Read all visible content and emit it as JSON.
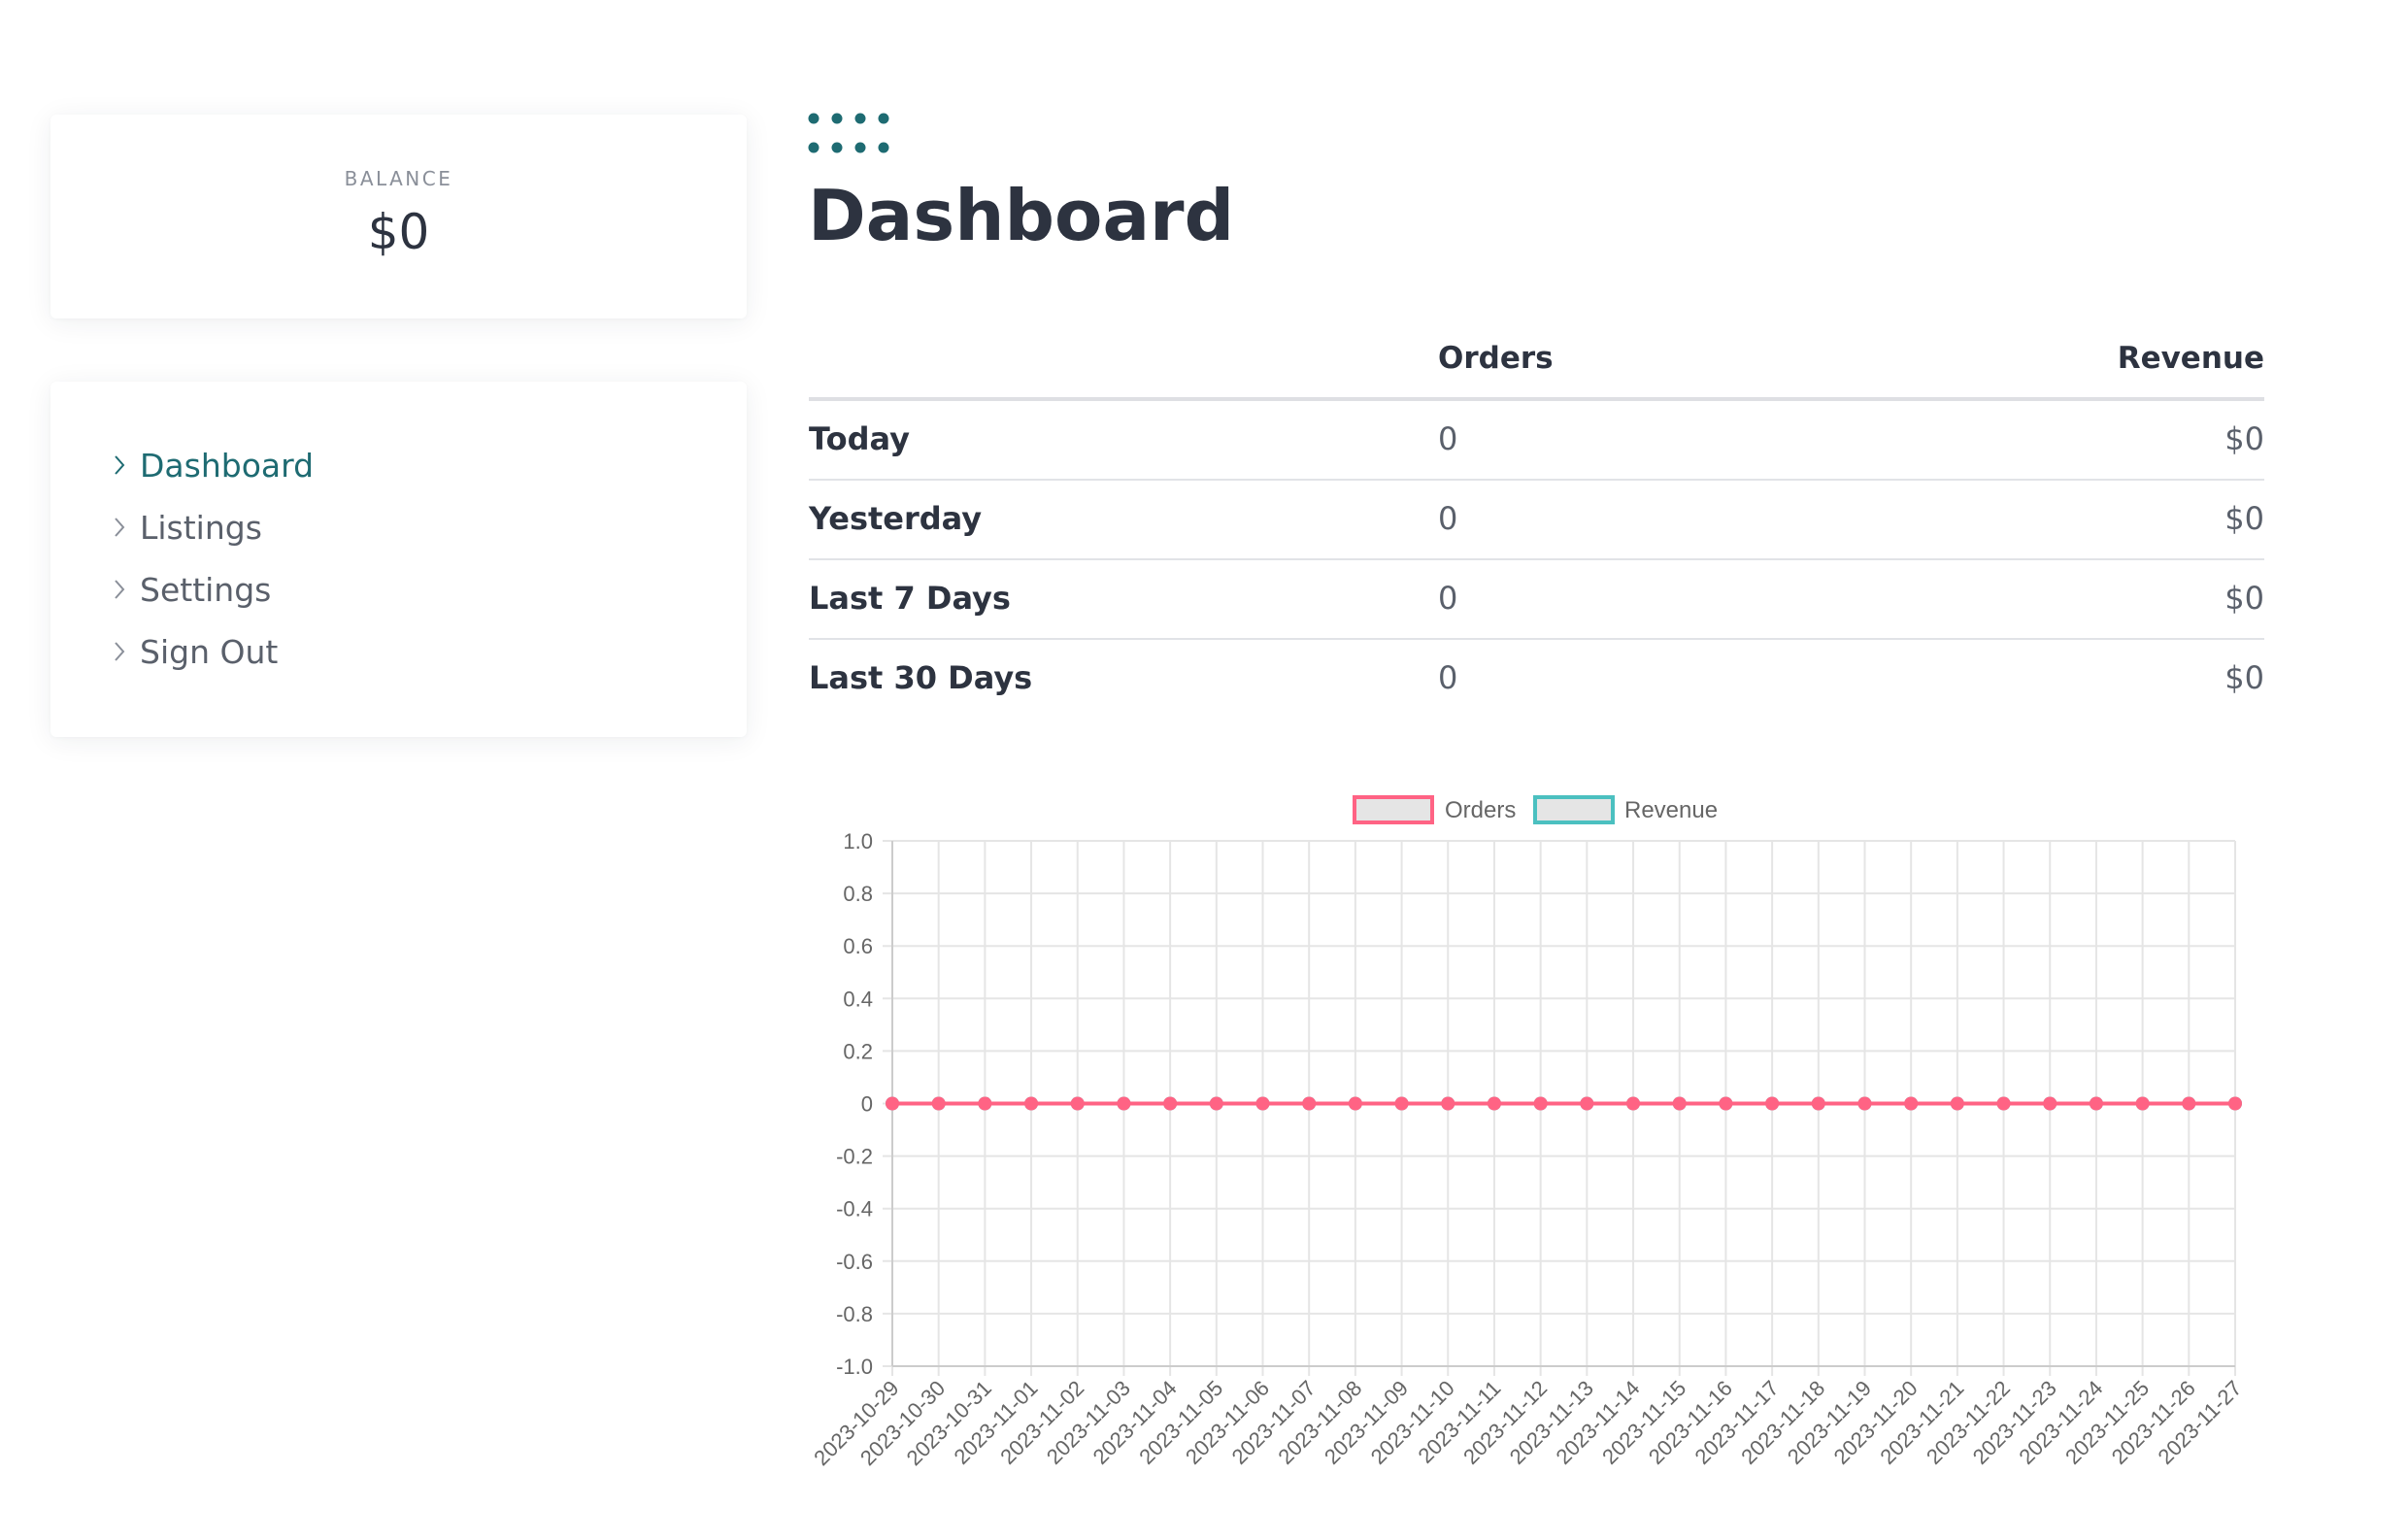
{
  "sidebar": {
    "balance": {
      "label": "BALANCE",
      "value": "$0"
    },
    "nav": [
      {
        "label": "Dashboard",
        "active": true
      },
      {
        "label": "Listings",
        "active": false
      },
      {
        "label": "Settings",
        "active": false
      },
      {
        "label": "Sign Out",
        "active": false
      }
    ]
  },
  "main": {
    "title": "Dashboard",
    "table": {
      "headers": {
        "period": "",
        "orders": "Orders",
        "revenue": "Revenue"
      },
      "rows": [
        {
          "label": "Today",
          "orders": "0",
          "revenue": "$0"
        },
        {
          "label": "Yesterday",
          "orders": "0",
          "revenue": "$0"
        },
        {
          "label": "Last 7 Days",
          "orders": "0",
          "revenue": "$0"
        },
        {
          "label": "Last 30 Days",
          "orders": "0",
          "revenue": "$0"
        }
      ]
    }
  },
  "colors": {
    "accent": "#1e6b72",
    "text_dark": "#2d3340",
    "text_muted": "#5a606b",
    "orders_series": "#ff6384",
    "revenue_series": "#4bc0c0",
    "legend_fill": "#e5e5e5",
    "grid": "#e5e5e5"
  },
  "chart_data": {
    "type": "line",
    "title": "",
    "xlabel": "",
    "ylabel": "",
    "ylim": [
      -1.0,
      1.0
    ],
    "y_ticks": [
      "1.0",
      "0.8",
      "0.6",
      "0.4",
      "0.2",
      "0",
      "-0.2",
      "-0.4",
      "-0.6",
      "-0.8",
      "-1.0"
    ],
    "grid": true,
    "legend_position": "top-center",
    "x": [
      "2023-10-29",
      "2023-10-30",
      "2023-10-31",
      "2023-11-01",
      "2023-11-02",
      "2023-11-03",
      "2023-11-04",
      "2023-11-05",
      "2023-11-06",
      "2023-11-07",
      "2023-11-08",
      "2023-11-09",
      "2023-11-10",
      "2023-11-11",
      "2023-11-12",
      "2023-11-13",
      "2023-11-14",
      "2023-11-15",
      "2023-11-16",
      "2023-11-17",
      "2023-11-18",
      "2023-11-19",
      "2023-11-20",
      "2023-11-21",
      "2023-11-22",
      "2023-11-23",
      "2023-11-24",
      "2023-11-25",
      "2023-11-26",
      "2023-11-27"
    ],
    "series": [
      {
        "name": "Orders",
        "color": "#ff6384",
        "values": [
          0,
          0,
          0,
          0,
          0,
          0,
          0,
          0,
          0,
          0,
          0,
          0,
          0,
          0,
          0,
          0,
          0,
          0,
          0,
          0,
          0,
          0,
          0,
          0,
          0,
          0,
          0,
          0,
          0,
          0
        ]
      },
      {
        "name": "Revenue",
        "color": "#4bc0c0",
        "values": [
          0,
          0,
          0,
          0,
          0,
          0,
          0,
          0,
          0,
          0,
          0,
          0,
          0,
          0,
          0,
          0,
          0,
          0,
          0,
          0,
          0,
          0,
          0,
          0,
          0,
          0,
          0,
          0,
          0,
          0
        ]
      }
    ]
  }
}
